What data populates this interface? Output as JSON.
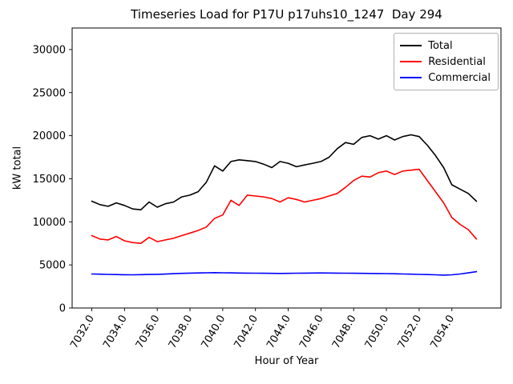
{
  "chart_data": {
    "type": "line",
    "title": "Timeseries Load for P17U p17uhs10_1247  Day 294",
    "xlabel": "Hour of Year",
    "ylabel": "kW total",
    "xlim": [
      7030.8,
      7057.0
    ],
    "ylim": [
      0,
      32500
    ],
    "grid": false,
    "legend_position": "upper right",
    "x_ticks": [
      7032,
      7034,
      7036,
      7038,
      7040,
      7042,
      7044,
      7046,
      7048,
      7050,
      7052,
      7054
    ],
    "x_tick_labels": [
      "7032.0",
      "7034.0",
      "7036.0",
      "7038.0",
      "7040.0",
      "7042.0",
      "7044.0",
      "7046.0",
      "7048.0",
      "7050.0",
      "7052.0",
      "7054.0"
    ],
    "y_ticks": [
      0,
      5000,
      10000,
      15000,
      20000,
      25000,
      30000
    ],
    "y_tick_labels": [
      "0",
      "5000",
      "10000",
      "15000",
      "20000",
      "25000",
      "30000"
    ],
    "x": [
      7032,
      7032.5,
      7033,
      7033.5,
      7034,
      7034.5,
      7035,
      7035.5,
      7036,
      7036.5,
      7037,
      7037.5,
      7038,
      7038.5,
      7039,
      7039.5,
      7040,
      7040.5,
      7041,
      7041.5,
      7042,
      7042.5,
      7043,
      7043.5,
      7044,
      7044.5,
      7045,
      7045.5,
      7046,
      7046.5,
      7047,
      7047.5,
      7048,
      7048.5,
      7049,
      7049.5,
      7050,
      7050.5,
      7051,
      7051.5,
      7052,
      7052.5,
      7053,
      7053.5,
      7054,
      7054.5,
      7055,
      7055.5
    ],
    "series": [
      {
        "name": "Total",
        "color": "#000000",
        "values": [
          12400,
          12000,
          11800,
          12200,
          11900,
          11500,
          11400,
          12300,
          11700,
          12100,
          12300,
          12900,
          13100,
          13500,
          14600,
          16500,
          15900,
          17000,
          17200,
          17100,
          17000,
          16700,
          16300,
          17000,
          16800,
          16400,
          16600,
          16800,
          17000,
          17500,
          18500,
          19200,
          19000,
          19800,
          20000,
          19600,
          20000,
          19500,
          19900,
          20100,
          19900,
          18900,
          17700,
          16300,
          14300,
          13800,
          13300,
          12400
        ]
      },
      {
        "name": "Residential",
        "color": "#ff0000",
        "values": [
          8400,
          8000,
          7900,
          8300,
          7800,
          7600,
          7500,
          8200,
          7700,
          7900,
          8100,
          8400,
          8700,
          9000,
          9400,
          10400,
          10800,
          12500,
          11900,
          13100,
          13000,
          12900,
          12700,
          12300,
          12800,
          12600,
          12300,
          12500,
          12700,
          13000,
          13300,
          14000,
          14800,
          15300,
          15200,
          15700,
          15900,
          15500,
          15900,
          16000,
          16100,
          14800,
          13500,
          12200,
          10500,
          9700,
          9100,
          8000
        ]
      },
      {
        "name": "Commercial",
        "color": "#0000ff",
        "values": [
          3950,
          3930,
          3900,
          3880,
          3860,
          3850,
          3870,
          3890,
          3910,
          3940,
          3980,
          4020,
          4050,
          4070,
          4090,
          4100,
          4090,
          4080,
          4060,
          4050,
          4040,
          4030,
          4020,
          4010,
          4020,
          4040,
          4050,
          4060,
          4070,
          4060,
          4050,
          4040,
          4030,
          4020,
          4010,
          4000,
          3990,
          3970,
          3950,
          3930,
          3900,
          3880,
          3850,
          3820,
          3850,
          3950,
          4080,
          4220
        ]
      }
    ]
  }
}
